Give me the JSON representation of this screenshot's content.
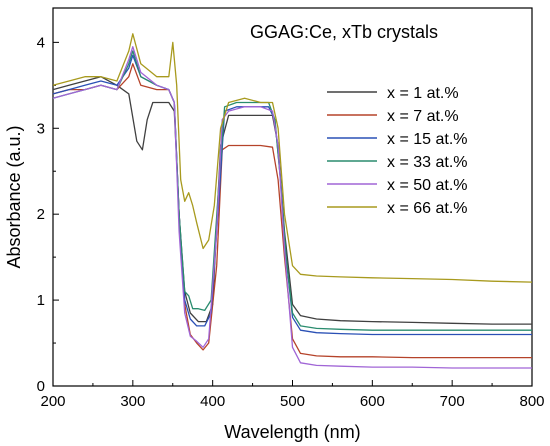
{
  "chart_data": {
    "type": "line",
    "title": "GGAG:Ce, xTb crystals",
    "xlabel": "Wavelength (nm)",
    "ylabel": "Absorbance (a.u.)",
    "xlim": [
      200,
      800
    ],
    "ylim": [
      0,
      4.4
    ],
    "xticks": [
      200,
      300,
      400,
      500,
      600,
      700,
      800
    ],
    "yticks": [
      0,
      1,
      2,
      3,
      4
    ],
    "legend_position": "right",
    "series": [
      {
        "name": "x = 1 at.%",
        "color": "#404040",
        "points": [
          [
            200,
            3.45
          ],
          [
            220,
            3.5
          ],
          [
            240,
            3.55
          ],
          [
            260,
            3.6
          ],
          [
            280,
            3.5
          ],
          [
            295,
            3.4
          ],
          [
            305,
            2.85
          ],
          [
            312,
            2.75
          ],
          [
            318,
            3.1
          ],
          [
            325,
            3.3
          ],
          [
            345,
            3.3
          ],
          [
            352,
            3.2
          ],
          [
            358,
            2.0
          ],
          [
            365,
            1.1
          ],
          [
            372,
            0.85
          ],
          [
            382,
            0.75
          ],
          [
            392,
            0.75
          ],
          [
            400,
            0.95
          ],
          [
            410,
            2.8
          ],
          [
            420,
            3.15
          ],
          [
            440,
            3.15
          ],
          [
            460,
            3.15
          ],
          [
            475,
            3.15
          ],
          [
            482,
            2.8
          ],
          [
            490,
            1.8
          ],
          [
            500,
            0.95
          ],
          [
            510,
            0.82
          ],
          [
            530,
            0.78
          ],
          [
            560,
            0.76
          ],
          [
            600,
            0.75
          ],
          [
            650,
            0.74
          ],
          [
            700,
            0.73
          ],
          [
            750,
            0.72
          ],
          [
            800,
            0.72
          ]
        ]
      },
      {
        "name": "x = 7 at.%",
        "color": "#b5432a",
        "points": [
          [
            200,
            3.4
          ],
          [
            220,
            3.45
          ],
          [
            240,
            3.45
          ],
          [
            260,
            3.5
          ],
          [
            280,
            3.45
          ],
          [
            295,
            3.6
          ],
          [
            300,
            3.75
          ],
          [
            310,
            3.5
          ],
          [
            330,
            3.45
          ],
          [
            345,
            3.45
          ],
          [
            352,
            3.3
          ],
          [
            358,
            2.0
          ],
          [
            365,
            0.95
          ],
          [
            372,
            0.6
          ],
          [
            380,
            0.5
          ],
          [
            388,
            0.42
          ],
          [
            395,
            0.5
          ],
          [
            405,
            1.4
          ],
          [
            412,
            2.75
          ],
          [
            420,
            2.8
          ],
          [
            440,
            2.8
          ],
          [
            460,
            2.8
          ],
          [
            475,
            2.78
          ],
          [
            482,
            2.4
          ],
          [
            490,
            1.5
          ],
          [
            500,
            0.55
          ],
          [
            510,
            0.38
          ],
          [
            530,
            0.35
          ],
          [
            560,
            0.34
          ],
          [
            600,
            0.34
          ],
          [
            650,
            0.33
          ],
          [
            700,
            0.33
          ],
          [
            750,
            0.33
          ],
          [
            800,
            0.33
          ]
        ]
      },
      {
        "name": "x = 15 at.%",
        "color": "#2a50b5",
        "points": [
          [
            200,
            3.4
          ],
          [
            220,
            3.45
          ],
          [
            240,
            3.5
          ],
          [
            260,
            3.55
          ],
          [
            280,
            3.5
          ],
          [
            295,
            3.7
          ],
          [
            300,
            3.85
          ],
          [
            310,
            3.6
          ],
          [
            330,
            3.5
          ],
          [
            345,
            3.45
          ],
          [
            352,
            3.3
          ],
          [
            358,
            2.0
          ],
          [
            365,
            1.0
          ],
          [
            372,
            0.78
          ],
          [
            380,
            0.7
          ],
          [
            390,
            0.7
          ],
          [
            398,
            0.85
          ],
          [
            408,
            2.2
          ],
          [
            415,
            3.2
          ],
          [
            430,
            3.25
          ],
          [
            450,
            3.25
          ],
          [
            470,
            3.25
          ],
          [
            478,
            3.1
          ],
          [
            485,
            2.4
          ],
          [
            492,
            1.5
          ],
          [
            500,
            0.8
          ],
          [
            510,
            0.65
          ],
          [
            530,
            0.62
          ],
          [
            560,
            0.61
          ],
          [
            600,
            0.6
          ],
          [
            650,
            0.6
          ],
          [
            700,
            0.6
          ],
          [
            750,
            0.6
          ],
          [
            800,
            0.6
          ]
        ]
      },
      {
        "name": "x = 33 at.%",
        "color": "#2a8c6e",
        "points": [
          [
            200,
            3.35
          ],
          [
            220,
            3.4
          ],
          [
            240,
            3.45
          ],
          [
            260,
            3.5
          ],
          [
            280,
            3.45
          ],
          [
            295,
            3.75
          ],
          [
            300,
            3.9
          ],
          [
            310,
            3.6
          ],
          [
            330,
            3.5
          ],
          [
            345,
            3.45
          ],
          [
            352,
            3.3
          ],
          [
            358,
            2.0
          ],
          [
            365,
            1.1
          ],
          [
            370,
            1.05
          ],
          [
            375,
            0.9
          ],
          [
            382,
            0.9
          ],
          [
            390,
            0.88
          ],
          [
            398,
            1.0
          ],
          [
            408,
            2.4
          ],
          [
            415,
            3.25
          ],
          [
            430,
            3.3
          ],
          [
            450,
            3.3
          ],
          [
            470,
            3.3
          ],
          [
            478,
            3.1
          ],
          [
            485,
            2.4
          ],
          [
            492,
            1.5
          ],
          [
            500,
            0.85
          ],
          [
            510,
            0.7
          ],
          [
            530,
            0.67
          ],
          [
            560,
            0.66
          ],
          [
            600,
            0.65
          ],
          [
            650,
            0.65
          ],
          [
            700,
            0.65
          ],
          [
            750,
            0.65
          ],
          [
            800,
            0.65
          ]
        ]
      },
      {
        "name": "x = 50 at.%",
        "color": "#a065d6",
        "points": [
          [
            200,
            3.35
          ],
          [
            220,
            3.4
          ],
          [
            240,
            3.45
          ],
          [
            260,
            3.5
          ],
          [
            280,
            3.45
          ],
          [
            295,
            3.8
          ],
          [
            300,
            3.95
          ],
          [
            310,
            3.65
          ],
          [
            330,
            3.5
          ],
          [
            345,
            3.45
          ],
          [
            352,
            3.3
          ],
          [
            358,
            1.8
          ],
          [
            365,
            0.85
          ],
          [
            372,
            0.58
          ],
          [
            380,
            0.52
          ],
          [
            388,
            0.45
          ],
          [
            395,
            0.55
          ],
          [
            405,
            1.8
          ],
          [
            412,
            3.1
          ],
          [
            420,
            3.2
          ],
          [
            440,
            3.25
          ],
          [
            460,
            3.25
          ],
          [
            475,
            3.2
          ],
          [
            482,
            2.8
          ],
          [
            490,
            1.6
          ],
          [
            500,
            0.45
          ],
          [
            510,
            0.27
          ],
          [
            530,
            0.24
          ],
          [
            560,
            0.23
          ],
          [
            600,
            0.22
          ],
          [
            650,
            0.22
          ],
          [
            700,
            0.21
          ],
          [
            750,
            0.21
          ],
          [
            800,
            0.21
          ]
        ]
      },
      {
        "name": "x = 66 at.%",
        "color": "#a89a1e",
        "points": [
          [
            200,
            3.5
          ],
          [
            220,
            3.55
          ],
          [
            240,
            3.6
          ],
          [
            260,
            3.6
          ],
          [
            280,
            3.55
          ],
          [
            295,
            3.9
          ],
          [
            300,
            4.1
          ],
          [
            310,
            3.75
          ],
          [
            330,
            3.6
          ],
          [
            345,
            3.6
          ],
          [
            350,
            4.0
          ],
          [
            355,
            3.5
          ],
          [
            360,
            2.4
          ],
          [
            365,
            2.15
          ],
          [
            370,
            2.25
          ],
          [
            375,
            2.1
          ],
          [
            380,
            1.9
          ],
          [
            388,
            1.6
          ],
          [
            395,
            1.7
          ],
          [
            402,
            2.1
          ],
          [
            410,
            3.0
          ],
          [
            420,
            3.3
          ],
          [
            440,
            3.35
          ],
          [
            460,
            3.3
          ],
          [
            475,
            3.3
          ],
          [
            482,
            3.0
          ],
          [
            490,
            2.0
          ],
          [
            500,
            1.4
          ],
          [
            510,
            1.3
          ],
          [
            530,
            1.28
          ],
          [
            560,
            1.27
          ],
          [
            600,
            1.26
          ],
          [
            650,
            1.25
          ],
          [
            700,
            1.24
          ],
          [
            750,
            1.22
          ],
          [
            800,
            1.21
          ]
        ]
      }
    ]
  }
}
